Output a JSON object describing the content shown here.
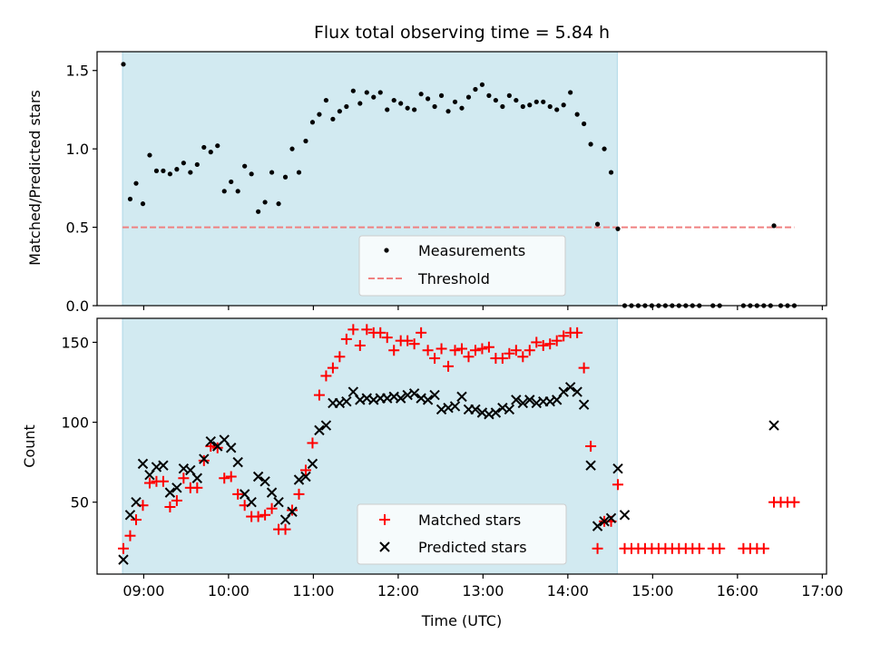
{
  "chart_data": {
    "title": "Flux total observing time = 5.84 h",
    "xlabel": "Time (UTC)",
    "x_tick_labels": [
      "09:00",
      "10:00",
      "11:00",
      "12:00",
      "13:00",
      "14:00",
      "15:00",
      "16:00",
      "17:00"
    ],
    "x_ticks_hours": [
      9,
      10,
      11,
      12,
      13,
      14,
      15,
      16,
      17
    ],
    "xlim_hours": [
      8.45,
      17.05
    ],
    "shaded_span_hours": [
      8.75,
      14.583
    ],
    "shade_color": "#add8e6",
    "panels": [
      {
        "type": "scatter",
        "ylabel": "Matched/Predicted stars",
        "ylim": [
          0,
          1.62
        ],
        "y_ticks": [
          0,
          0.5,
          1,
          1.5
        ],
        "y_tick_labels": [
          "0.0",
          "0.5",
          "1.0",
          "1.5"
        ],
        "threshold": {
          "name": "Threshold",
          "value": 0.5,
          "x_range": [
            8.75,
            16.67
          ],
          "color": "#f08080"
        },
        "series": [
          {
            "name": "Measurements",
            "color": "#000000",
            "marker": "dot",
            "x": [
              8.76,
              8.84,
              8.91,
              8.99,
              9.07,
              9.15,
              9.23,
              9.31,
              9.39,
              9.47,
              9.55,
              9.63,
              9.71,
              9.79,
              9.87,
              9.95,
              10.03,
              10.11,
              10.19,
              10.27,
              10.35,
              10.43,
              10.51,
              10.59,
              10.67,
              10.75,
              10.83,
              10.91,
              10.99,
              11.07,
              11.15,
              11.23,
              11.31,
              11.39,
              11.47,
              11.55,
              11.63,
              11.71,
              11.79,
              11.87,
              11.95,
              12.03,
              12.11,
              12.19,
              12.27,
              12.35,
              12.43,
              12.51,
              12.59,
              12.67,
              12.75,
              12.83,
              12.91,
              12.99,
              13.07,
              13.15,
              13.23,
              13.31,
              13.39,
              13.47,
              13.55,
              13.63,
              13.71,
              13.79,
              13.87,
              13.95,
              14.03,
              14.11,
              14.19,
              14.27,
              14.35,
              14.43,
              14.51,
              14.59,
              14.67,
              14.75,
              14.83,
              14.91,
              14.99,
              15.07,
              15.15,
              15.23,
              15.31,
              15.39,
              15.47,
              15.55,
              15.71,
              15.79,
              16.07,
              16.15,
              16.23,
              16.31,
              16.39,
              16.43,
              16.51,
              16.59,
              16.67
            ],
            "y": [
              1.54,
              0.68,
              0.78,
              0.65,
              0.96,
              0.86,
              0.86,
              0.84,
              0.87,
              0.91,
              0.85,
              0.9,
              1.01,
              0.98,
              1.02,
              0.73,
              0.79,
              0.73,
              0.89,
              0.84,
              0.6,
              0.66,
              0.85,
              0.65,
              0.82,
              1.0,
              0.85,
              1.05,
              1.17,
              1.22,
              1.31,
              1.19,
              1.24,
              1.27,
              1.37,
              1.29,
              1.36,
              1.33,
              1.36,
              1.25,
              1.31,
              1.29,
              1.26,
              1.25,
              1.35,
              1.32,
              1.27,
              1.34,
              1.24,
              1.3,
              1.26,
              1.33,
              1.38,
              1.41,
              1.34,
              1.31,
              1.27,
              1.34,
              1.31,
              1.27,
              1.28,
              1.3,
              1.3,
              1.27,
              1.25,
              1.28,
              1.36,
              1.22,
              1.16,
              1.03,
              0.52,
              1.0,
              0.85,
              0.49,
              0,
              0,
              0,
              0,
              0,
              0,
              0,
              0,
              0,
              0,
              0,
              0,
              0,
              0,
              0,
              0,
              0,
              0,
              0,
              0.51,
              0,
              0,
              0
            ]
          }
        ],
        "legend": {
          "placement": "bottom-center",
          "entries": [
            "Measurements",
            "Threshold"
          ]
        }
      },
      {
        "type": "scatter",
        "ylabel": "Count",
        "ylim": [
          5,
          165
        ],
        "y_ticks": [
          50,
          100,
          150
        ],
        "y_tick_labels": [
          "50",
          "100",
          "150"
        ],
        "series": [
          {
            "name": "Matched stars",
            "color": "#ff0000",
            "marker": "plus",
            "x": [
              8.76,
              8.84,
              8.91,
              8.99,
              9.07,
              9.15,
              9.23,
              9.31,
              9.39,
              9.47,
              9.55,
              9.63,
              9.71,
              9.79,
              9.87,
              9.95,
              10.03,
              10.11,
              10.19,
              10.27,
              10.35,
              10.43,
              10.51,
              10.59,
              10.67,
              10.75,
              10.83,
              10.91,
              10.99,
              11.07,
              11.15,
              11.23,
              11.31,
              11.39,
              11.47,
              11.55,
              11.63,
              11.71,
              11.79,
              11.87,
              11.95,
              12.03,
              12.11,
              12.19,
              12.27,
              12.35,
              12.43,
              12.51,
              12.59,
              12.67,
              12.75,
              12.83,
              12.91,
              12.99,
              13.07,
              13.15,
              13.23,
              13.31,
              13.39,
              13.47,
              13.55,
              13.63,
              13.71,
              13.79,
              13.87,
              13.95,
              14.03,
              14.11,
              14.19,
              14.27,
              14.35,
              14.43,
              14.51,
              14.59,
              14.67,
              14.75,
              14.83,
              14.91,
              14.99,
              15.07,
              15.15,
              15.23,
              15.31,
              15.39,
              15.47,
              15.55,
              15.71,
              15.79,
              16.07,
              16.15,
              16.23,
              16.31,
              16.43,
              16.51,
              16.59,
              16.67
            ],
            "y": [
              21,
              29,
              39,
              48,
              62,
              63,
              63,
              47,
              51,
              65,
              59,
              59,
              76,
              85,
              84,
              65,
              66,
              55,
              48,
              41,
              41,
              42,
              46,
              33,
              33,
              45,
              55,
              70,
              87,
              117,
              129,
              134,
              141,
              152,
              158,
              148,
              158,
              156,
              156,
              153,
              145,
              151,
              151,
              149,
              156,
              145,
              140,
              146,
              135,
              145,
              146,
              141,
              145,
              146,
              147,
              140,
              140,
              143,
              145,
              141,
              145,
              150,
              148,
              149,
              151,
              154,
              156,
              156,
              134,
              85,
              21,
              38,
              38,
              61,
              21,
              21,
              21,
              21,
              21,
              21,
              21,
              21,
              21,
              21,
              21,
              21,
              21,
              21,
              21,
              21,
              21,
              21,
              50,
              50,
              50,
              50
            ]
          },
          {
            "name": "Predicted stars",
            "color": "#000000",
            "marker": "x",
            "x": [
              8.76,
              8.84,
              8.91,
              8.99,
              9.07,
              9.15,
              9.23,
              9.31,
              9.39,
              9.47,
              9.55,
              9.63,
              9.71,
              9.79,
              9.87,
              9.95,
              10.03,
              10.11,
              10.19,
              10.27,
              10.35,
              10.43,
              10.51,
              10.59,
              10.67,
              10.75,
              10.83,
              10.91,
              10.99,
              11.07,
              11.15,
              11.23,
              11.31,
              11.39,
              11.47,
              11.55,
              11.63,
              11.71,
              11.79,
              11.87,
              11.95,
              12.03,
              12.11,
              12.19,
              12.27,
              12.35,
              12.43,
              12.51,
              12.59,
              12.67,
              12.75,
              12.83,
              12.91,
              12.99,
              13.07,
              13.15,
              13.23,
              13.31,
              13.39,
              13.47,
              13.55,
              13.63,
              13.71,
              13.79,
              13.87,
              13.95,
              14.03,
              14.11,
              14.19,
              14.27,
              14.35,
              14.43,
              14.51,
              14.59,
              14.67,
              16.43
            ],
            "y": [
              14,
              42,
              50,
              74,
              67,
              72,
              73,
              56,
              59,
              71,
              70,
              65,
              77,
              88,
              85,
              89,
              84,
              75,
              55,
              50,
              66,
              63,
              56,
              50,
              39,
              44,
              64,
              66,
              74,
              95,
              98,
              112,
              112,
              113,
              119,
              114,
              115,
              114,
              115,
              115,
              116,
              115,
              117,
              118,
              115,
              114,
              117,
              108,
              109,
              110,
              116,
              108,
              108,
              106,
              105,
              106,
              109,
              108,
              114,
              112,
              114,
              112,
              113,
              113,
              114,
              119,
              122,
              119,
              111,
              73,
              35,
              38,
              40,
              71,
              42,
              98
            ]
          }
        ],
        "legend": {
          "placement": "bottom-center",
          "entries": [
            "Matched stars",
            "Predicted stars"
          ]
        }
      }
    ]
  }
}
